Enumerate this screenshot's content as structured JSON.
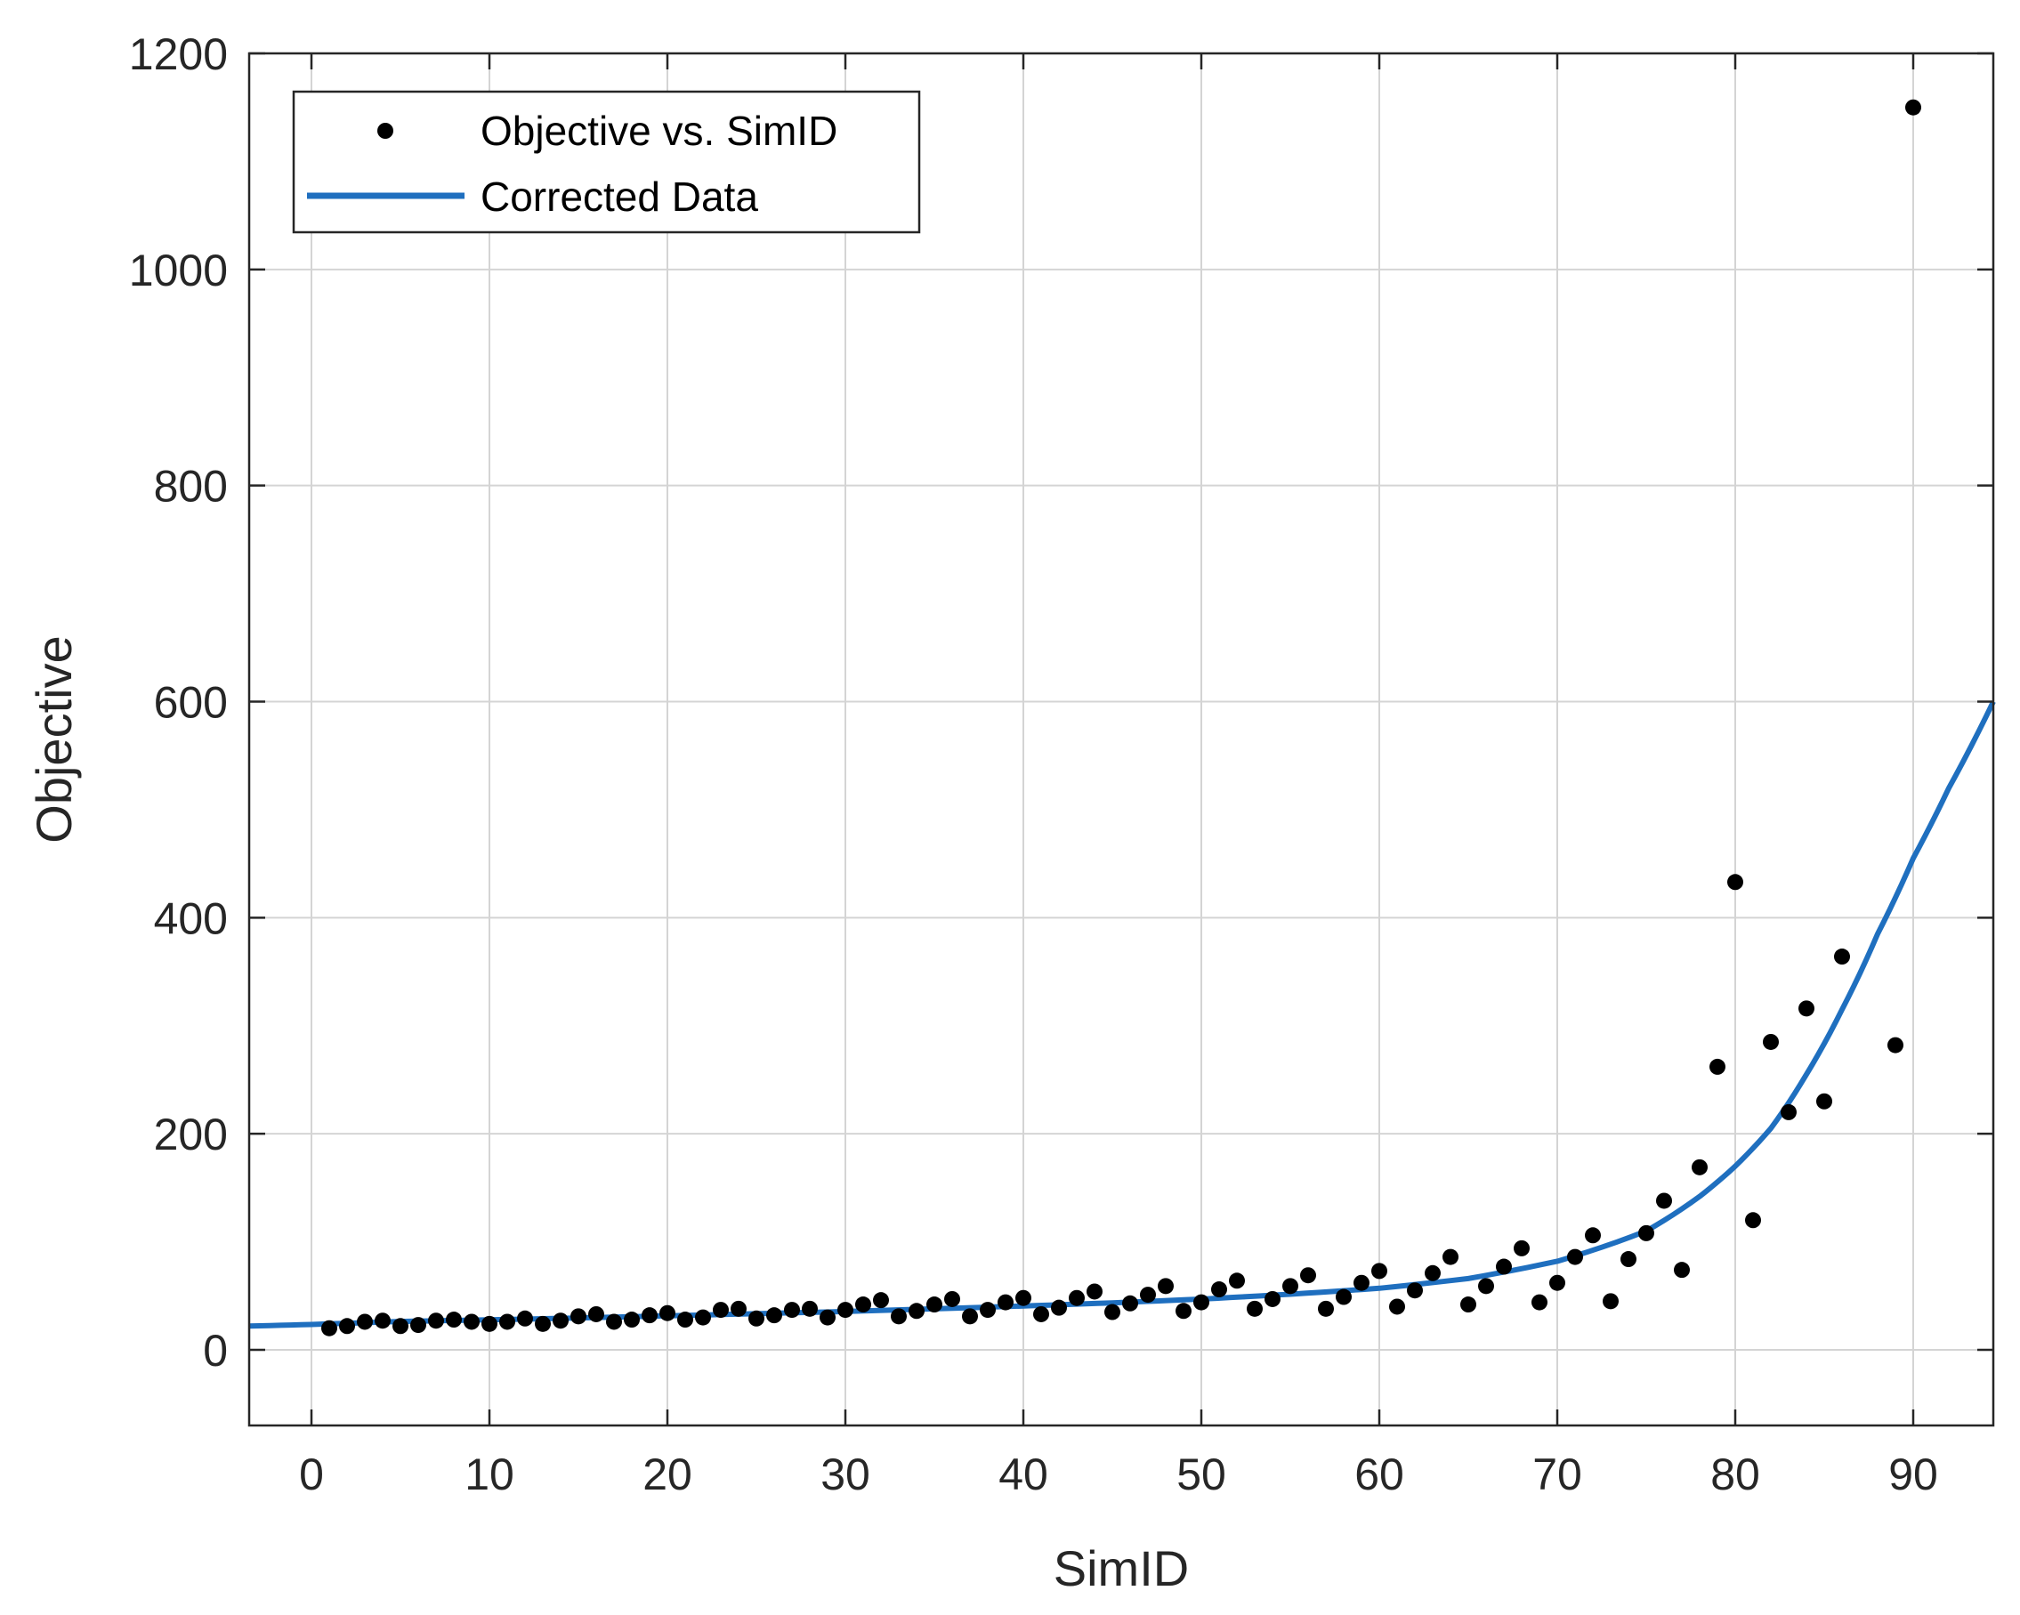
{
  "chart_data": {
    "type": "scatter",
    "xlabel": "SimID",
    "ylabel": "Objective",
    "xlim": [
      -3.5,
      94.5
    ],
    "ylim": [
      -70,
      1200
    ],
    "xticks": [
      0,
      10,
      20,
      30,
      40,
      50,
      60,
      70,
      80,
      90
    ],
    "yticks": [
      0,
      200,
      400,
      600,
      800,
      1000,
      1200
    ],
    "grid": true,
    "legend_position": "top-left",
    "series": [
      {
        "name": "Objective vs. SimID",
        "kind": "markers",
        "color": "#000000",
        "x": [
          1,
          2,
          3,
          4,
          5,
          6,
          7,
          8,
          9,
          10,
          11,
          12,
          13,
          14,
          15,
          16,
          17,
          18,
          19,
          20,
          21,
          22,
          23,
          24,
          25,
          26,
          27,
          28,
          29,
          30,
          31,
          32,
          33,
          34,
          35,
          36,
          37,
          38,
          39,
          40,
          41,
          42,
          43,
          44,
          45,
          46,
          47,
          48,
          49,
          50,
          51,
          52,
          53,
          54,
          55,
          56,
          57,
          58,
          59,
          60,
          61,
          62,
          63,
          64,
          65,
          66,
          67,
          68,
          69,
          70,
          71,
          72,
          73,
          74,
          75,
          76,
          77,
          78,
          79,
          80,
          81,
          82,
          83,
          84,
          85,
          86,
          89,
          90
        ],
        "y": [
          20,
          22,
          26,
          27,
          22,
          23,
          27,
          28,
          26,
          24,
          26,
          29,
          24,
          27,
          31,
          33,
          26,
          28,
          32,
          34,
          28,
          30,
          37,
          38,
          29,
          32,
          37,
          38,
          30,
          37,
          42,
          46,
          31,
          36,
          42,
          47,
          31,
          37,
          44,
          48,
          33,
          39,
          48,
          54,
          35,
          43,
          51,
          59,
          36,
          44,
          56,
          64,
          38,
          47,
          59,
          69,
          38,
          49,
          62,
          73,
          40,
          55,
          71,
          86,
          42,
          59,
          77,
          94,
          44,
          62,
          86,
          106,
          45,
          84,
          108,
          138,
          74,
          169,
          262,
          433,
          120,
          285,
          220,
          316,
          230,
          364,
          282,
          1150
        ]
      },
      {
        "name": "Corrected Data",
        "kind": "line",
        "color": "#1f6fbf",
        "x": [
          -3.5,
          0,
          5,
          10,
          15,
          20,
          25,
          30,
          35,
          40,
          45,
          50,
          55,
          60,
          65,
          70,
          75,
          78,
          80,
          82,
          84,
          86,
          88,
          90,
          92,
          94.5
        ],
        "y": [
          22,
          23.5,
          26.3,
          27.8,
          29.5,
          31.5,
          33.5,
          35.5,
          38,
          40.6,
          43.5,
          47,
          51.5,
          57,
          66,
          82,
          110,
          142,
          170,
          205,
          255,
          315,
          385,
          455,
          520,
          600
        ]
      }
    ]
  }
}
